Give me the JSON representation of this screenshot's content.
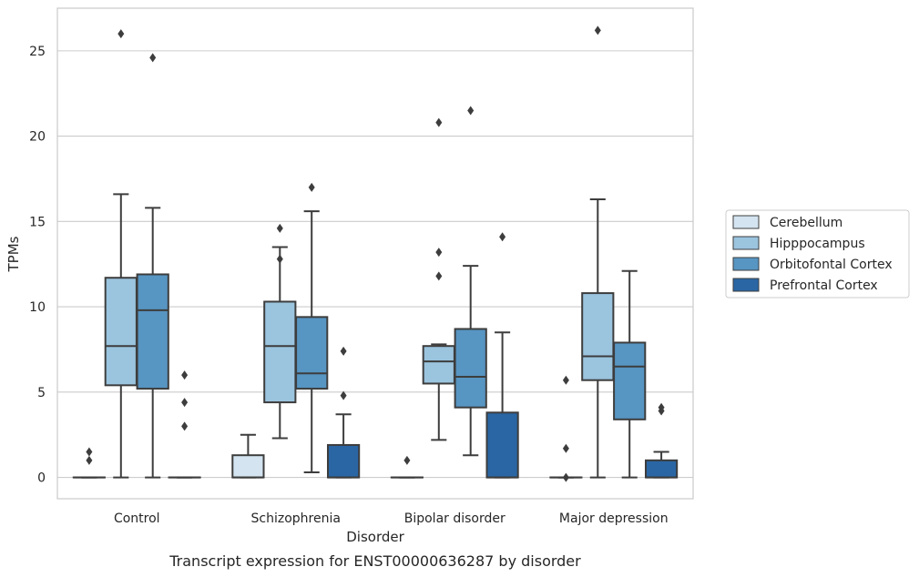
{
  "chart_data": {
    "type": "box",
    "xlabel": "Disorder",
    "ylabel": "TPMs",
    "caption": "Transcript expression for ENST00000636287 by disorder",
    "categories": [
      "Control",
      "Schizophrenia",
      "Bipolar disorder",
      "Major depression"
    ],
    "ylim": [
      -1.25,
      27.5
    ],
    "yticks": [
      0,
      5,
      10,
      15,
      20,
      25
    ],
    "grid": "horizontal",
    "legend_position": "right",
    "series": [
      {
        "name": "Cerebellum",
        "color": "#d4e4f0",
        "boxes": [
          {
            "whisker_low": 0,
            "q1": 0,
            "median": 0,
            "q3": 0,
            "whisker_high": 0,
            "outliers": [
              1.5,
              1.0
            ]
          },
          {
            "whisker_low": 0,
            "q1": 0,
            "median": 0,
            "q3": 1.3,
            "whisker_high": 2.5,
            "outliers": []
          },
          {
            "whisker_low": 0,
            "q1": 0,
            "median": 0,
            "q3": 0,
            "whisker_high": 0,
            "outliers": [
              1.0
            ]
          },
          {
            "whisker_low": 0,
            "q1": 0,
            "median": 0,
            "q3": 0,
            "whisker_high": 0,
            "outliers": [
              5.7,
              1.7,
              0.0
            ]
          }
        ]
      },
      {
        "name": "Hipppocampus",
        "color": "#9bc4de",
        "boxes": [
          {
            "whisker_low": 0,
            "q1": 5.4,
            "median": 7.7,
            "q3": 11.7,
            "whisker_high": 16.6,
            "outliers": [
              26.0
            ]
          },
          {
            "whisker_low": 2.3,
            "q1": 4.4,
            "median": 7.7,
            "q3": 10.3,
            "whisker_high": 13.5,
            "outliers": [
              14.6,
              12.8
            ]
          },
          {
            "whisker_low": 2.2,
            "q1": 5.5,
            "median": 6.8,
            "q3": 7.7,
            "whisker_high": 7.8,
            "outliers": [
              20.8,
              13.2,
              11.8
            ]
          },
          {
            "whisker_low": 0,
            "q1": 5.7,
            "median": 7.1,
            "q3": 10.8,
            "whisker_high": 16.3,
            "outliers": [
              26.2
            ]
          }
        ]
      },
      {
        "name": "Orbitofontal Cortex",
        "color": "#5795c2",
        "boxes": [
          {
            "whisker_low": 0,
            "q1": 5.2,
            "median": 9.8,
            "q3": 11.9,
            "whisker_high": 15.8,
            "outliers": [
              24.6
            ]
          },
          {
            "whisker_low": 0.3,
            "q1": 5.2,
            "median": 6.1,
            "q3": 9.4,
            "whisker_high": 15.6,
            "outliers": [
              17.0
            ]
          },
          {
            "whisker_low": 1.3,
            "q1": 4.1,
            "median": 5.9,
            "q3": 8.7,
            "whisker_high": 12.4,
            "outliers": [
              21.5
            ]
          },
          {
            "whisker_low": 0,
            "q1": 3.4,
            "median": 6.5,
            "q3": 7.9,
            "whisker_high": 12.1,
            "outliers": []
          }
        ]
      },
      {
        "name": "Prefrontal Cortex",
        "color": "#2a66a4",
        "boxes": [
          {
            "whisker_low": 0,
            "q1": 0,
            "median": 0,
            "q3": 0,
            "whisker_high": 0,
            "outliers": [
              6.0,
              4.4,
              3.0
            ]
          },
          {
            "whisker_low": 0,
            "q1": 0,
            "median": 0,
            "q3": 1.9,
            "whisker_high": 3.7,
            "outliers": [
              7.4,
              4.8
            ]
          },
          {
            "whisker_low": 0,
            "q1": 0,
            "median": 0,
            "q3": 3.8,
            "whisker_high": 8.5,
            "outliers": [
              14.1
            ]
          },
          {
            "whisker_low": 0,
            "q1": 0,
            "median": 0,
            "q3": 1.0,
            "whisker_high": 1.5,
            "outliers": [
              4.1,
              3.9
            ]
          }
        ]
      }
    ]
  }
}
